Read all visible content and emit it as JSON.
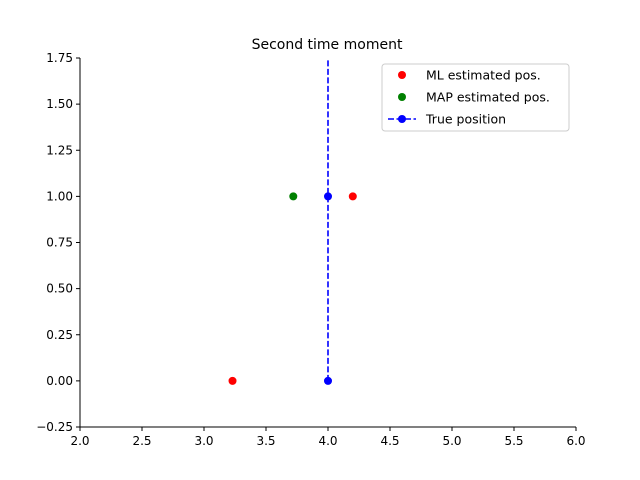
{
  "chart_data": {
    "type": "scatter",
    "title": "Second time moment",
    "xlabel": "",
    "ylabel": "",
    "xlim": [
      2.0,
      6.0
    ],
    "ylim": [
      -0.25,
      1.75
    ],
    "x_ticks": [
      "2.0",
      "2.5",
      "3.0",
      "3.5",
      "4.0",
      "4.5",
      "5.0",
      "5.5",
      "6.0"
    ],
    "y_ticks": [
      "−0.25",
      "0.00",
      "0.25",
      "0.50",
      "0.75",
      "1.00",
      "1.25",
      "1.50",
      "1.75"
    ],
    "grid": false,
    "legend_position": "top-right",
    "series": [
      {
        "name": "ML estimated pos.",
        "color": "#ff0000",
        "style": "markers",
        "points": [
          [
            3.23,
            0.0
          ],
          [
            4.2,
            1.0
          ]
        ]
      },
      {
        "name": "MAP estimated pos.",
        "color": "#008000",
        "style": "markers",
        "points": [
          [
            3.72,
            1.0
          ]
        ]
      },
      {
        "name": "True position",
        "color": "#0000ff",
        "style": "dashed-line-markers",
        "points": [
          [
            4.0,
            0.0
          ],
          [
            4.0,
            1.0
          ]
        ]
      }
    ],
    "true_position_line": {
      "x": 4.0,
      "y_range": [
        0.0,
        1.75
      ]
    }
  }
}
